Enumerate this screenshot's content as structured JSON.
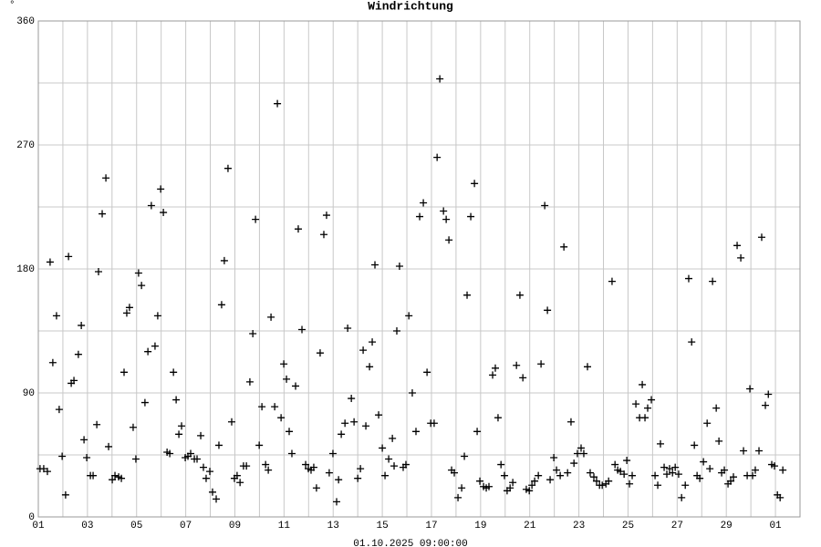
{
  "chart_data": {
    "type": "scatter",
    "title": "Windrichtung",
    "y_label": "°",
    "x_label": "01.10.2025 09:00:00",
    "color": "#000000",
    "grid": true,
    "xlim": [
      0,
      31
    ],
    "ylim": [
      0,
      360
    ],
    "xticks": [
      {
        "value": 0,
        "label": "01"
      },
      {
        "value": 2,
        "label": "03"
      },
      {
        "value": 4,
        "label": "05"
      },
      {
        "value": 6,
        "label": "07"
      },
      {
        "value": 8,
        "label": "09"
      },
      {
        "value": 10,
        "label": "11"
      },
      {
        "value": 12,
        "label": "13"
      },
      {
        "value": 14,
        "label": "15"
      },
      {
        "value": 16,
        "label": "17"
      },
      {
        "value": 18,
        "label": "19"
      },
      {
        "value": 20,
        "label": "21"
      },
      {
        "value": 22,
        "label": "23"
      },
      {
        "value": 24,
        "label": "25"
      },
      {
        "value": 26,
        "label": "27"
      },
      {
        "value": 28,
        "label": "29"
      },
      {
        "value": 30,
        "label": "01"
      }
    ],
    "minor_xticks": [
      1,
      3,
      5,
      7,
      9,
      11,
      13,
      15,
      17,
      19,
      21,
      23,
      25,
      27,
      29
    ],
    "yticks": [
      0,
      90,
      180,
      270,
      360
    ],
    "minor_yticks": [
      45,
      135,
      225,
      315
    ],
    "x": [
      0.07,
      0.22,
      0.37,
      0.48,
      0.59,
      0.74,
      0.85,
      0.97,
      1.11,
      1.23,
      1.34,
      1.45,
      1.63,
      1.75,
      1.86,
      1.97,
      2.12,
      2.23,
      2.38,
      2.45,
      2.6,
      2.75,
      2.86,
      3.01,
      3.12,
      3.27,
      3.38,
      3.49,
      3.6,
      3.71,
      3.86,
      3.97,
      4.08,
      4.2,
      4.34,
      4.46,
      4.6,
      4.75,
      4.86,
      4.98,
      5.09,
      5.24,
      5.35,
      5.5,
      5.61,
      5.72,
      5.83,
      5.98,
      6.09,
      6.2,
      6.35,
      6.46,
      6.61,
      6.72,
      6.83,
      6.98,
      7.09,
      7.24,
      7.35,
      7.46,
      7.57,
      7.72,
      7.87,
      7.98,
      8.09,
      8.21,
      8.35,
      8.47,
      8.61,
      8.73,
      8.84,
      8.99,
      9.1,
      9.25,
      9.36,
      9.47,
      9.62,
      9.73,
      9.88,
      9.99,
      10.1,
      10.21,
      10.32,
      10.47,
      10.58,
      10.73,
      10.88,
      10.99,
      11.1,
      11.21,
      11.32,
      11.47,
      11.62,
      11.73,
      11.84,
      11.99,
      12.14,
      12.22,
      12.33,
      12.48,
      12.59,
      12.74,
      12.85,
      13.0,
      13.11,
      13.22,
      13.33,
      13.48,
      13.59,
      13.7,
      13.85,
      14.0,
      14.11,
      14.26,
      14.41,
      14.48,
      14.59,
      14.7,
      14.85,
      14.96,
      15.08,
      15.22,
      15.37,
      15.52,
      15.67,
      15.82,
      15.97,
      16.11,
      16.23,
      16.34,
      16.49,
      16.6,
      16.71,
      16.82,
      16.93,
      17.08,
      17.23,
      17.34,
      17.45,
      17.6,
      17.75,
      17.86,
      17.97,
      18.12,
      18.23,
      18.34,
      18.49,
      18.6,
      18.71,
      18.83,
      18.97,
      19.08,
      19.2,
      19.31,
      19.46,
      19.6,
      19.72,
      19.86,
      19.98,
      20.09,
      20.2,
      20.35,
      20.46,
      20.61,
      20.72,
      20.83,
      20.98,
      21.09,
      21.24,
      21.39,
      21.54,
      21.68,
      21.8,
      21.94,
      22.09,
      22.2,
      22.35,
      22.46,
      22.61,
      22.72,
      22.84,
      22.95,
      23.1,
      23.21,
      23.35,
      23.47,
      23.58,
      23.69,
      23.84,
      23.95,
      24.06,
      24.17,
      24.32,
      24.47,
      24.58,
      24.69,
      24.8,
      24.95,
      25.1,
      25.21,
      25.32,
      25.47,
      25.58,
      25.69,
      25.81,
      25.92,
      26.06,
      26.18,
      26.33,
      26.47,
      26.59,
      26.7,
      26.81,
      26.92,
      27.07,
      27.22,
      27.33,
      27.44,
      27.59,
      27.7,
      27.81,
      27.92,
      28.07,
      28.18,
      28.29,
      28.44,
      28.59,
      28.7,
      28.85,
      28.96,
      29.07,
      29.18,
      29.33,
      29.44,
      29.59,
      29.71,
      29.85,
      29.96,
      30.08,
      30.19,
      30.3
    ],
    "values": [
      35,
      35,
      33,
      185,
      112,
      146,
      78,
      44,
      16,
      189,
      97,
      99,
      118,
      139,
      56,
      43,
      30,
      30,
      67,
      178,
      220,
      246,
      51,
      27,
      30,
      29,
      28,
      105,
      148,
      152,
      65,
      42,
      177,
      168,
      83,
      120,
      226,
      124,
      146,
      238,
      221,
      47,
      46,
      105,
      85,
      60,
      66,
      43,
      44,
      46,
      42,
      42,
      59,
      36,
      28,
      33,
      18,
      13,
      52,
      154,
      186,
      253,
      69,
      28,
      30,
      25,
      37,
      37,
      98,
      133,
      216,
      52,
      80,
      38,
      34,
      145,
      80,
      300,
      72,
      111,
      100,
      62,
      46,
      95,
      209,
      136,
      38,
      35,
      34,
      36,
      21,
      119,
      205,
      219,
      32,
      46,
      11,
      27,
      60,
      68,
      137,
      86,
      69,
      28,
      35,
      121,
      66,
      109,
      127,
      183,
      74,
      50,
      30,
      42,
      57,
      37,
      135,
      182,
      36,
      38,
      146,
      90,
      62,
      218,
      228,
      105,
      68,
      68,
      261,
      318,
      222,
      216,
      201,
      34,
      32,
      14,
      21,
      44,
      161,
      218,
      242,
      62,
      26,
      22,
      21,
      22,
      103,
      108,
      72,
      38,
      30,
      19,
      21,
      25,
      110,
      161,
      101,
      20,
      19,
      23,
      26,
      30,
      111,
      226,
      150,
      27,
      43,
      34,
      30,
      196,
      32,
      69,
      39,
      46,
      50,
      46,
      109,
      32,
      29,
      26,
      23,
      23,
      24,
      26,
      171,
      38,
      34,
      33,
      31,
      41,
      24,
      30,
      82,
      72,
      96,
      72,
      79,
      85,
      30,
      23,
      53,
      36,
      31,
      35,
      32,
      36,
      31,
      14,
      23,
      173,
      127,
      52,
      30,
      28,
      40,
      68,
      35,
      171,
      79,
      55,
      32,
      34,
      24,
      26,
      29,
      197,
      188,
      48,
      30,
      93,
      30,
      34,
      48,
      203,
      81,
      89,
      38,
      37,
      16,
      14,
      34
    ]
  }
}
